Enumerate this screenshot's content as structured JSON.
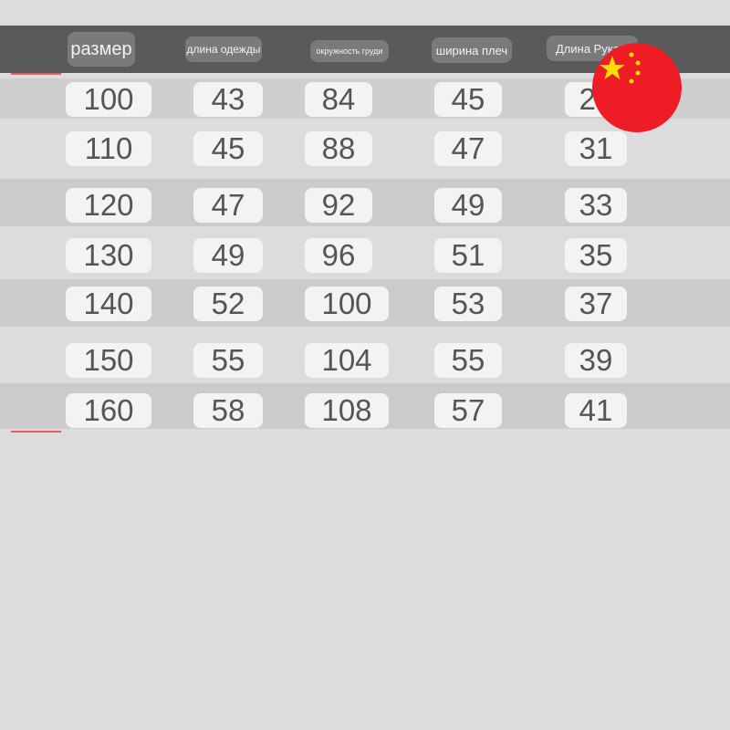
{
  "headers": [
    "размер",
    "длина одежды",
    "окружность груди",
    "ширина плеч",
    "Длина Рукава"
  ],
  "rows": [
    [
      "100",
      "43",
      "84",
      "45",
      "29"
    ],
    [
      "110",
      "45",
      "88",
      "47",
      "31"
    ],
    [
      "120",
      "47",
      "92",
      "49",
      "33"
    ],
    [
      "130",
      "49",
      "96",
      "51",
      "35"
    ],
    [
      "140",
      "52",
      "100",
      "53",
      "37"
    ],
    [
      "150",
      "55",
      "104",
      "55",
      "39"
    ],
    [
      "160",
      "58",
      "108",
      "57",
      "41"
    ]
  ],
  "flag_icon": "china-flag-icon",
  "colors": {
    "header": "#5a5a5a",
    "flag_red": "#ee1c25",
    "star": "#ffde00"
  }
}
